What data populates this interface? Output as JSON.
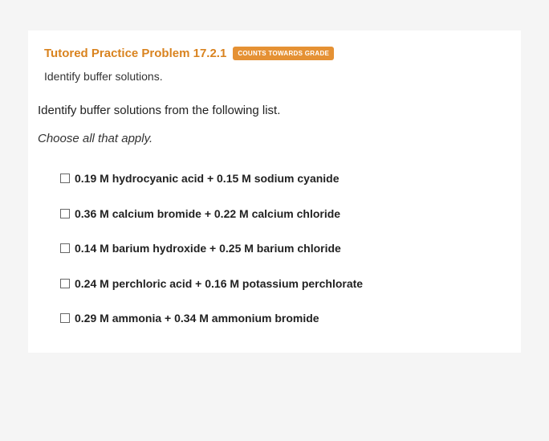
{
  "header": {
    "title": "Tutored Practice Problem 17.2.1",
    "badge": "COUNTS TOWARDS GRADE",
    "subtitle": "Identify buffer solutions."
  },
  "question": "Identify buffer solutions from the following list.",
  "instruction": "Choose all that apply.",
  "options": [
    "0.19 M hydrocyanic acid + 0.15 M sodium cyanide",
    "0.36 M calcium bromide + 0.22 M calcium chloride",
    "0.14 M barium hydroxide + 0.25 M barium chloride",
    "0.24 M perchloric acid + 0.16 M potassium perchlorate",
    "0.29 M ammonia + 0.34 M ammonium bromide"
  ],
  "colors": {
    "title_color": "#d9831f",
    "badge_bg": "#e59134",
    "badge_text": "#ffffff",
    "text_color": "#222222",
    "body_bg": "#f5f5f5",
    "container_bg": "#ffffff"
  }
}
